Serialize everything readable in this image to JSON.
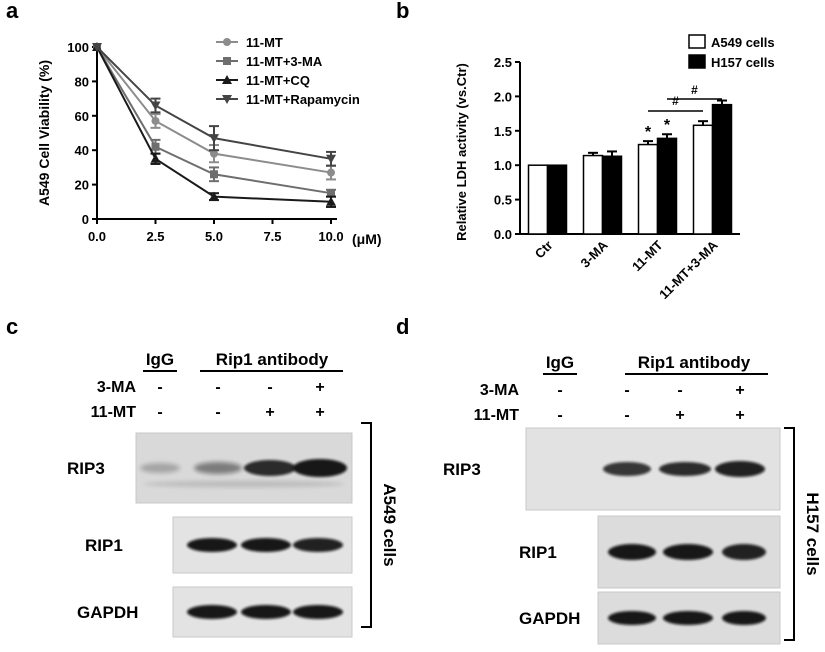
{
  "panels": {
    "a": {
      "letter": "a"
    },
    "b": {
      "letter": "b"
    },
    "c": {
      "letter": "c",
      "group_igg": "IgG",
      "group_rip1": "Rip1 antibody",
      "row_labels": [
        "3-MA",
        "11-MT"
      ],
      "row_values": [
        [
          "-",
          "-",
          "-",
          "+"
        ],
        [
          "-",
          "-",
          "+",
          "+"
        ]
      ],
      "blot_labels": [
        "RIP3",
        "RIP1",
        "GAPDH"
      ],
      "cell_line": "A549 cells"
    },
    "d": {
      "letter": "d",
      "group_igg": "IgG",
      "group_rip1": "Rip1 antibody",
      "row_labels": [
        "3-MA",
        "11-MT"
      ],
      "row_values": [
        [
          "-",
          "-",
          "-",
          "+"
        ],
        [
          "-",
          "-",
          "+",
          "+"
        ]
      ],
      "blot_labels": [
        "RIP3",
        "RIP1",
        "GAPDH"
      ],
      "cell_line": "H157 cells"
    }
  },
  "chart_data": [
    {
      "type": "line",
      "ylabel": "A549 Cell Viability (%)",
      "xunit": "(μM)",
      "x": [
        0.0,
        2.5,
        5.0,
        10.0
      ],
      "xticks": [
        "0.0",
        "2.5",
        "5.0",
        "7.5",
        "10.0"
      ],
      "xlim": [
        0,
        10
      ],
      "ylim": [
        0,
        100
      ],
      "yticks": [
        0,
        20,
        40,
        60,
        80,
        100
      ],
      "legend_position": "top-right",
      "series": [
        {
          "name": "11-MT",
          "marker": "circle",
          "color": "#8c8c8c",
          "values": [
            100,
            57,
            38,
            27
          ],
          "errors": [
            0,
            4,
            5,
            4
          ]
        },
        {
          "name": "11-MT+3-MA",
          "marker": "square",
          "color": "#6e6e6e",
          "values": [
            100,
            42,
            26,
            15
          ],
          "errors": [
            0,
            4,
            4,
            2
          ]
        },
        {
          "name": "11-MT+CQ",
          "marker": "triangle-up",
          "color": "#1a1a1a",
          "values": [
            100,
            35,
            13,
            10
          ],
          "errors": [
            0,
            3,
            2,
            3
          ]
        },
        {
          "name": "11-MT+Rapamycin",
          "marker": "triangle-down",
          "color": "#444444",
          "values": [
            100,
            66,
            47,
            35
          ],
          "errors": [
            0,
            4,
            7,
            4
          ]
        }
      ]
    },
    {
      "type": "bar",
      "ylabel": "Relative LDH activity (vs.Ctr)",
      "categories": [
        "Ctr",
        "3-MA",
        "11-MT",
        "11-MT+3-MA"
      ],
      "ylim": [
        0,
        2.5
      ],
      "yticks": [
        "0.0",
        "0.5",
        "1.0",
        "1.5",
        "2.0",
        "2.5"
      ],
      "legend_position": "top-right",
      "series": [
        {
          "name": "A549 cells",
          "fill": "#ffffff",
          "values": [
            1.0,
            1.14,
            1.3,
            1.58
          ],
          "errors": [
            0,
            0.04,
            0.05,
            0.06
          ]
        },
        {
          "name": "H157 cells",
          "fill": "#000000",
          "values": [
            1.0,
            1.13,
            1.39,
            1.88
          ],
          "errors": [
            0,
            0.07,
            0.06,
            0.06
          ]
        }
      ],
      "annotations": {
        "star": "*",
        "hash": "#"
      }
    }
  ]
}
